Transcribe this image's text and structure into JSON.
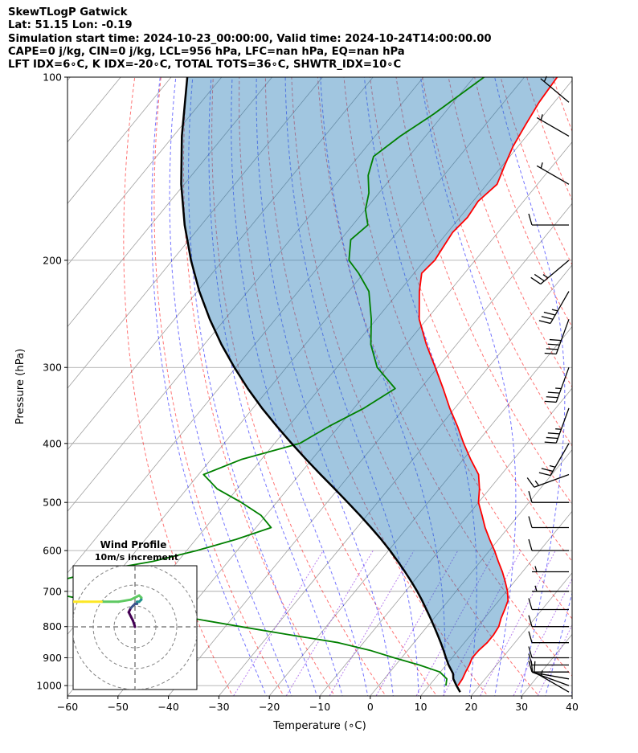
{
  "header": {
    "line1": "SkewTLogP Gatwick",
    "line2": "Lat: 51.15   Lon: -0.19",
    "line3": "Simulation start time: 2024-10-23_00:00:00, Valid time: 2024-10-24T14:00:00.00",
    "line4": "CAPE=0 j/kg, CIN=0 j/kg, LCL=956 hPa, LFC=nan hPa, EQ=nan hPa",
    "line5": "LFT IDX=6∘C, K IDX=-20∘C, TOTAL TOTS=36∘C, SHWTR_IDX=10∘C"
  },
  "chart_data": [
    {
      "type": "line",
      "subtype": "skew-t log-p diagram",
      "xlabel": "Temperature (∘C)",
      "ylabel": "Pressure (hPa)",
      "xlim": [
        -60,
        40
      ],
      "ylim": [
        1040,
        100
      ],
      "y_scale": "log",
      "x_ticks": [
        -60,
        -50,
        -40,
        -30,
        -20,
        -10,
        0,
        10,
        20,
        30,
        40
      ],
      "x_tick_labels": [
        "−60",
        "−50",
        "−40",
        "−30",
        "−20",
        "−10",
        "0",
        "10",
        "20",
        "30",
        "40"
      ],
      "y_ticks": [
        1000,
        900,
        800,
        700,
        600,
        500,
        400,
        300,
        200,
        100
      ],
      "y_tick_labels": [
        "1000",
        "900",
        "800",
        "700",
        "600",
        "500",
        "400",
        "300",
        "200",
        "100"
      ],
      "grid": true,
      "colors": {
        "temperature": "#ff0000",
        "dewpoint": "#008000",
        "parcel": "#000000",
        "cape_fill": "#1f77b4",
        "dry_adiabats": "#ff0000",
        "moist_adiabats": "#0000ff",
        "mixing_ratio": "#8a2be2",
        "isotherms": "#a0a0a0",
        "barbs": "#000000"
      },
      "series": [
        {
          "role": "temperature",
          "points": [
            [
              15.7,
              1000
            ],
            [
              15.5,
              975
            ],
            [
              15,
              950
            ],
            [
              14.6,
              925
            ],
            [
              14,
              900
            ],
            [
              14.1,
              875
            ],
            [
              14.5,
              850
            ],
            [
              14.5,
              825
            ],
            [
              14.2,
              800
            ],
            [
              13.3,
              775
            ],
            [
              12.6,
              750
            ],
            [
              11.8,
              725
            ],
            [
              10.2,
              700
            ],
            [
              8.2,
              675
            ],
            [
              6,
              650
            ],
            [
              3.5,
              625
            ],
            [
              1,
              600
            ],
            [
              -1.8,
              575
            ],
            [
              -4.6,
              550
            ],
            [
              -7.2,
              525
            ],
            [
              -10,
              500
            ],
            [
              -12,
              475
            ],
            [
              -14.5,
              450
            ],
            [
              -18.5,
              425
            ],
            [
              -22.5,
              400
            ],
            [
              -26.5,
              375
            ],
            [
              -31,
              350
            ],
            [
              -35.5,
              325
            ],
            [
              -40.5,
              300
            ],
            [
              -46,
              275
            ],
            [
              -51.5,
              250
            ],
            [
              -56,
              225
            ],
            [
              -58.5,
              210
            ],
            [
              -58,
              200
            ],
            [
              -58.5,
              190
            ],
            [
              -59,
              180
            ],
            [
              -58.5,
              170
            ],
            [
              -59,
              160
            ],
            [
              -58,
              150
            ],
            [
              -59.5,
              140
            ],
            [
              -61,
              130
            ],
            [
              -62,
              120
            ],
            [
              -63,
              110
            ],
            [
              -63.5,
              100
            ]
          ]
        },
        {
          "role": "dewpoint",
          "points": [
            [
              13.3,
              1000
            ],
            [
              12.4,
              975
            ],
            [
              9.9,
              950
            ],
            [
              4.7,
              925
            ],
            [
              -1.5,
              900
            ],
            [
              -7.5,
              875
            ],
            [
              -15,
              850
            ],
            [
              -26,
              825
            ],
            [
              -37,
              800
            ],
            [
              -48,
              775
            ],
            [
              -60,
              750
            ],
            [
              -71,
              725
            ],
            [
              -82,
              700
            ],
            [
              -81,
              675
            ],
            [
              -75,
              650
            ],
            [
              -65,
              625
            ],
            [
              -58,
              600
            ],
            [
              -52,
              575
            ],
            [
              -47,
              550
            ],
            [
              -51,
              525
            ],
            [
              -57,
              500
            ],
            [
              -64,
              475
            ],
            [
              -69,
              450
            ],
            [
              -64,
              425
            ],
            [
              -55,
              400
            ],
            [
              -52,
              375
            ],
            [
              -48,
              350
            ],
            [
              -45,
              325
            ],
            [
              -52,
              300
            ],
            [
              -57,
              275
            ],
            [
              -61,
              250
            ],
            [
              -66,
              225
            ],
            [
              -71,
              210
            ],
            [
              -75,
              200
            ],
            [
              -78,
              185
            ],
            [
              -77,
              175
            ],
            [
              -80,
              165
            ],
            [
              -82,
              155
            ],
            [
              -85,
              145
            ],
            [
              -87,
              135
            ],
            [
              -85,
              125
            ],
            [
              -82,
              115
            ],
            [
              -78,
              100
            ]
          ]
        },
        {
          "role": "parcel",
          "points": [
            [
              17.2,
              1025
            ],
            [
              15.4,
              1000
            ],
            [
              13.7,
              975
            ],
            [
              12.8,
              956
            ],
            [
              10.5,
              925
            ],
            [
              8.8,
              900
            ],
            [
              7.1,
              875
            ],
            [
              5.3,
              850
            ],
            [
              3.4,
              825
            ],
            [
              1.4,
              800
            ],
            [
              -0.7,
              775
            ],
            [
              -2.9,
              750
            ],
            [
              -5.2,
              725
            ],
            [
              -7.7,
              700
            ],
            [
              -10.4,
              675
            ],
            [
              -13.3,
              650
            ],
            [
              -16.4,
              625
            ],
            [
              -19.7,
              600
            ],
            [
              -23.3,
              575
            ],
            [
              -27.2,
              550
            ],
            [
              -31.4,
              525
            ],
            [
              -35.9,
              500
            ],
            [
              -40.7,
              475
            ],
            [
              -45.8,
              450
            ],
            [
              -51.1,
              425
            ],
            [
              -56.6,
              400
            ],
            [
              -62.3,
              375
            ],
            [
              -68.2,
              350
            ],
            [
              -74.2,
              325
            ],
            [
              -80.3,
              300
            ],
            [
              -86.6,
              275
            ],
            [
              -93,
              250
            ],
            [
              -99.6,
              225
            ],
            [
              -106.3,
              200
            ],
            [
              -113.3,
              175
            ],
            [
              -120.6,
              150
            ],
            [
              -128.3,
              125
            ],
            [
              -136.8,
              100
            ]
          ]
        },
        {
          "role": "wind barbs",
          "levels_hpa": [
            1025,
            1000,
            975,
            950,
            925,
            900,
            850,
            800,
            750,
            700,
            650,
            600,
            550,
            500,
            450,
            400,
            350,
            300,
            250,
            225,
            200,
            175,
            150,
            125,
            110
          ],
          "speed_kt": [
            5,
            10,
            10,
            10,
            10,
            10,
            10,
            10,
            10,
            5,
            5,
            10,
            10,
            10,
            15,
            25,
            35,
            35,
            40,
            35,
            25,
            10,
            5,
            5,
            5
          ],
          "direction_deg": [
            300,
            290,
            280,
            270,
            270,
            270,
            270,
            270,
            270,
            270,
            270,
            270,
            270,
            270,
            250,
            210,
            200,
            200,
            200,
            210,
            230,
            270,
            300,
            300,
            310
          ]
        }
      ]
    },
    {
      "type": "line",
      "subtype": "hodograph",
      "title": "Wind Profile",
      "subtitle": "10m/s increment",
      "rings": [
        10,
        20,
        30
      ],
      "colormap": "viridis",
      "points": [
        [
          0,
          0
        ],
        [
          -1,
          3
        ],
        [
          -2,
          5
        ],
        [
          -3,
          7
        ],
        [
          -2,
          9
        ],
        [
          -1,
          10
        ],
        [
          0,
          11
        ],
        [
          1,
          11
        ],
        [
          1,
          12
        ],
        [
          2,
          12
        ],
        [
          3,
          13
        ],
        [
          3,
          14
        ],
        [
          2,
          15
        ],
        [
          -2,
          13
        ],
        [
          -8,
          12
        ],
        [
          -16,
          12
        ],
        [
          -25,
          12
        ],
        [
          -32,
          12
        ],
        [
          -34,
          11
        ]
      ]
    }
  ]
}
